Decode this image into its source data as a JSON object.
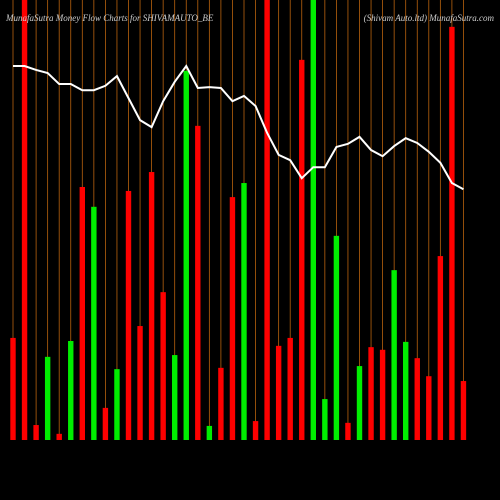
{
  "chart_data": {
    "type": "bar",
    "title": "MunafaSutra  Money Flow  Charts for SHIVAMAUTO_BE",
    "subtitle": "(Shivam Auto.ltd) MunafaSutra.com",
    "categories": [
      null,
      null,
      null,
      null,
      null,
      null,
      null,
      null,
      null,
      null,
      null,
      null,
      null,
      null,
      null,
      null,
      null,
      null,
      null,
      null,
      null,
      null,
      null,
      null,
      null,
      null,
      null,
      null,
      null,
      null,
      null,
      null,
      null,
      null,
      null,
      null,
      null,
      null,
      null,
      null
    ],
    "series": [
      {
        "type": "bar",
        "values": [
          23.2,
          100,
          3.4,
          18.9,
          1.4,
          22.5,
          57.5,
          53,
          7.3,
          16.1,
          56.6,
          25.9,
          60.9,
          33.6,
          19.3,
          83.9,
          71.4,
          3.2,
          16.4,
          55.2,
          58.4,
          4.3,
          100,
          21.4,
          23.2,
          86.4,
          100,
          9.3,
          46.4,
          3.9,
          16.8,
          21.1,
          20.5,
          38.6,
          22.3,
          18.6,
          14.5,
          41.8,
          93.9,
          13.4
        ],
        "colors": [
          "#ff0000",
          "#ff0000",
          "#ff0000",
          "#00ee00",
          "#ff0000",
          "#00ee00",
          "#ff0000",
          "#00ee00",
          "#ff0000",
          "#00ee00",
          "#ff0000",
          "#ff0000",
          "#ff0000",
          "#ff0000",
          "#00ee00",
          "#00ee00",
          "#ff0000",
          "#00ee00",
          "#ff0000",
          "#ff0000",
          "#00ee00",
          "#ff0000",
          "#ff0000",
          "#ff0000",
          "#ff0000",
          "#ff0000",
          "#00ee00",
          "#00ee00",
          "#00ee00",
          "#ff0000",
          "#00ee00",
          "#ff0000",
          "#ff0000",
          "#00ee00",
          "#00ee00",
          "#ff0000",
          "#ff0000",
          "#ff0000",
          "#ff0000",
          "#ff0000"
        ]
      },
      {
        "type": "line",
        "color": "#ffffff",
        "values": [
          85,
          85,
          84.1,
          83.4,
          80.9,
          80.9,
          79.5,
          79.5,
          80.5,
          82.7,
          77.7,
          72.7,
          71.1,
          77,
          81.4,
          85,
          80,
          80.2,
          80,
          77,
          78.2,
          75.9,
          69.8,
          64.8,
          63.6,
          59.5,
          62,
          62,
          66.6,
          67.3,
          68.9,
          65.9,
          64.5,
          66.8,
          68.6,
          67.5,
          65.5,
          63,
          58.4,
          57
        ]
      }
    ],
    "ylim": [
      0,
      100
    ],
    "grid": true,
    "grid_color": "#b8620e"
  }
}
